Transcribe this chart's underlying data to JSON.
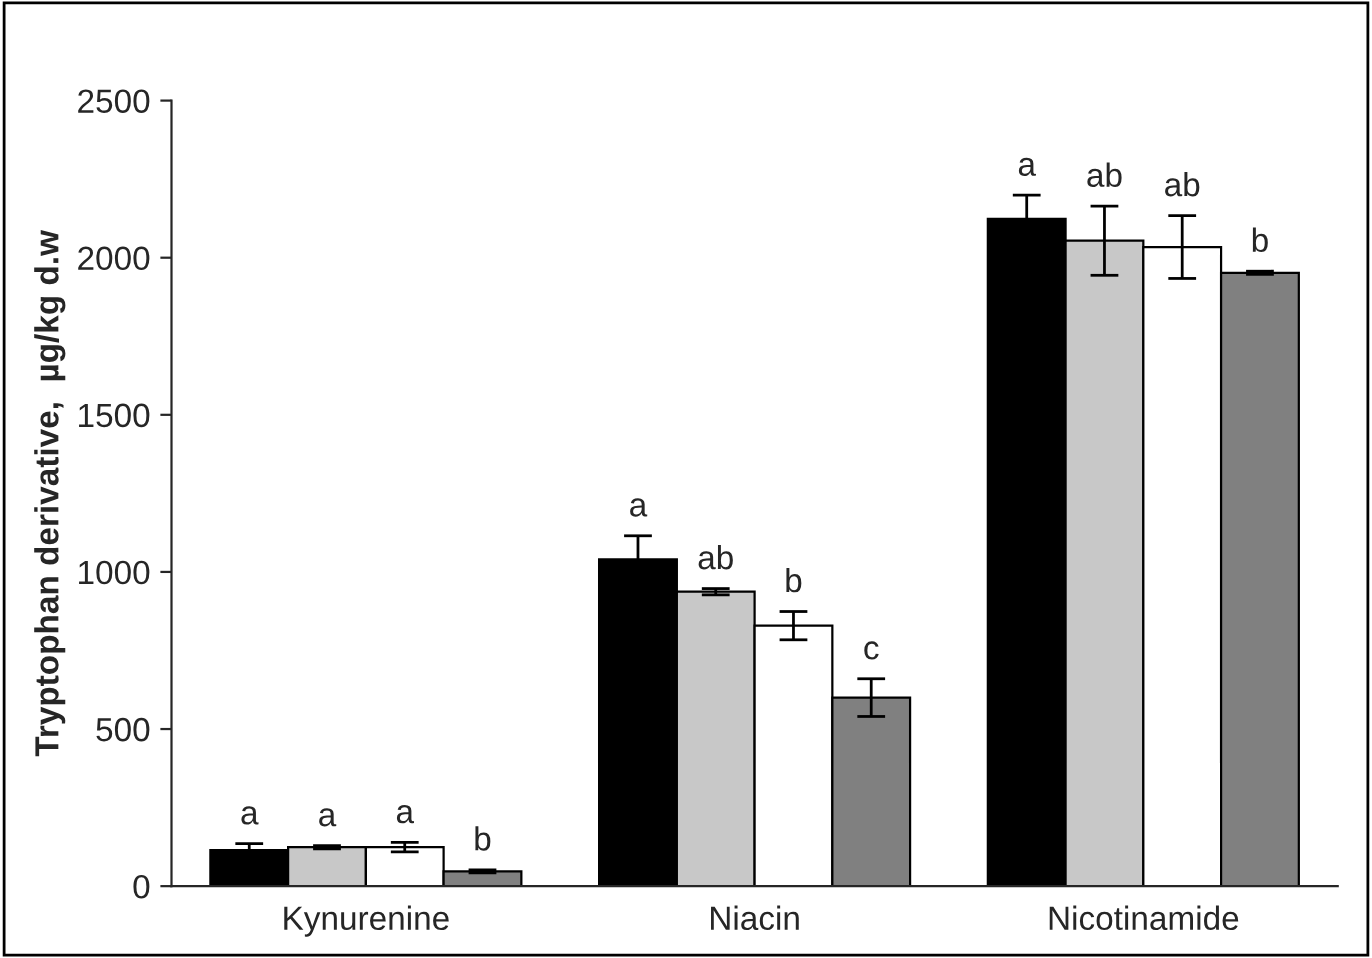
{
  "chart_data": {
    "type": "bar",
    "ylabel": "Tryptophan derivative,  µg/kg d.w",
    "categories": [
      "Kynurenine",
      "Niacin",
      "Nicotinamide"
    ],
    "series": [
      {
        "color": "#000000",
        "values": [
          115,
          1040,
          2124
        ],
        "errors": [
          20,
          75,
          75
        ],
        "value_labels": [
          "a",
          "a",
          "a"
        ]
      },
      {
        "color": "#c8c8c8",
        "values": [
          124,
          937,
          2054
        ],
        "errors": [
          5,
          10,
          110
        ],
        "value_labels": [
          "a",
          "ab",
          "ab"
        ]
      },
      {
        "color": "#ffffff",
        "values": [
          124,
          829,
          2034
        ],
        "errors": [
          15,
          45,
          100
        ],
        "value_labels": [
          "a",
          "b",
          "ab"
        ]
      },
      {
        "color": "#808080",
        "values": [
          47,
          600,
          1952
        ],
        "errors": [
          5,
          60,
          5
        ],
        "value_labels": [
          "b",
          "c",
          "b"
        ]
      }
    ],
    "ylim": [
      0,
      2500
    ],
    "yticks": [
      0,
      500,
      1000,
      1500,
      2000,
      2500
    ],
    "grid": false,
    "legend": false
  }
}
